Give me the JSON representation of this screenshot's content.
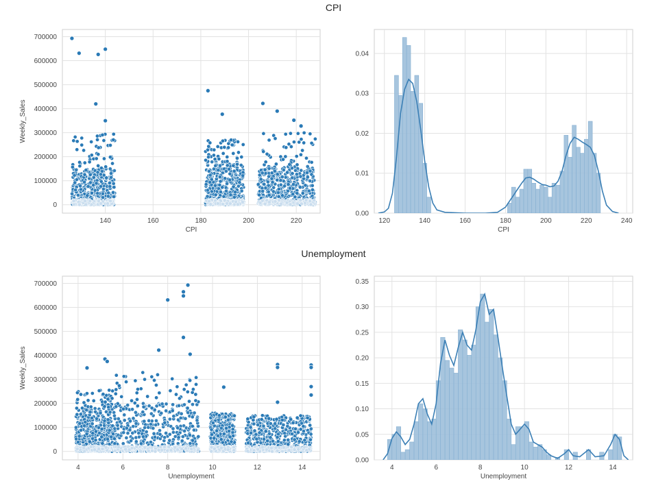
{
  "figure": {
    "row1_title": "CPI",
    "row2_title": "Unemployment"
  },
  "colors": {
    "point": "#2a7ab6",
    "bar_fill": "#9dbfda",
    "bar_edge": "#86b0d2",
    "kde": "#3b7fb5",
    "grid": "#e2e2e2",
    "axes": "#cfcfcf",
    "text": "#444444"
  },
  "chart_data": [
    {
      "type": "scatter",
      "title": "",
      "xlabel": "CPI",
      "ylabel": "Weekly_Sales",
      "xlim": [
        122,
        230
      ],
      "ylim": [
        -35000,
        730000
      ],
      "xticks": [
        140,
        160,
        180,
        200,
        220
      ],
      "yticks": [
        0,
        100000,
        200000,
        300000,
        400000,
        500000,
        600000,
        700000
      ],
      "xtick_labels": [
        "140",
        "160",
        "180",
        "200",
        "220"
      ],
      "ytick_labels": [
        "0",
        "100000",
        "200000",
        "300000",
        "400000",
        "500000",
        "600000",
        "700000"
      ],
      "grid": true,
      "clusters": [
        {
          "x_range": [
            126,
            144
          ],
          "y_dense_max": 150000,
          "y_sparse_max": 300000
        },
        {
          "x_range": [
            182,
            198
          ],
          "y_dense_max": 180000,
          "y_sparse_max": 270000
        },
        {
          "x_range": [
            204,
            228
          ],
          "y_dense_max": 160000,
          "y_sparse_max": 300000
        }
      ],
      "outliers": [
        [
          126,
          693000
        ],
        [
          129,
          631000
        ],
        [
          137,
          626000
        ],
        [
          140,
          648000
        ],
        [
          136,
          420000
        ],
        [
          140,
          350000
        ],
        [
          183,
          475000
        ],
        [
          189,
          377000
        ],
        [
          206,
          422000
        ],
        [
          212,
          390000
        ],
        [
          219,
          352000
        ],
        [
          222,
          328000
        ]
      ]
    },
    {
      "type": "bar",
      "title": "",
      "xlabel": "CPI",
      "ylabel": "",
      "xlim": [
        115,
        243
      ],
      "ylim": [
        0,
        0.046
      ],
      "xticks": [
        120,
        140,
        160,
        180,
        200,
        220,
        240
      ],
      "yticks": [
        0.0,
        0.01,
        0.02,
        0.03,
        0.04
      ],
      "xtick_labels": [
        "120",
        "140",
        "160",
        "180",
        "200",
        "220",
        "240"
      ],
      "ytick_labels": [
        "0.00",
        "0.01",
        "0.02",
        "0.03",
        "0.04"
      ],
      "grid": true,
      "bin_width": 2,
      "bins": [
        {
          "x": 126,
          "y": 0.0345
        },
        {
          "x": 128,
          "y": 0.0295
        },
        {
          "x": 130,
          "y": 0.044
        },
        {
          "x": 132,
          "y": 0.042
        },
        {
          "x": 134,
          "y": 0.0305
        },
        {
          "x": 136,
          "y": 0.0345
        },
        {
          "x": 138,
          "y": 0.0275
        },
        {
          "x": 140,
          "y": 0.0125
        },
        {
          "x": 142,
          "y": 0.004
        },
        {
          "x": 182,
          "y": 0.0025
        },
        {
          "x": 184,
          "y": 0.0065
        },
        {
          "x": 186,
          "y": 0.004
        },
        {
          "x": 188,
          "y": 0.006
        },
        {
          "x": 190,
          "y": 0.011
        },
        {
          "x": 192,
          "y": 0.011
        },
        {
          "x": 194,
          "y": 0.0075
        },
        {
          "x": 196,
          "y": 0.006
        },
        {
          "x": 198,
          "y": 0.007
        },
        {
          "x": 200,
          "y": 0.0065
        },
        {
          "x": 202,
          "y": 0.004
        },
        {
          "x": 204,
          "y": 0.0075
        },
        {
          "x": 206,
          "y": 0.007
        },
        {
          "x": 208,
          "y": 0.0105
        },
        {
          "x": 210,
          "y": 0.0195
        },
        {
          "x": 212,
          "y": 0.014
        },
        {
          "x": 214,
          "y": 0.022
        },
        {
          "x": 216,
          "y": 0.0165
        },
        {
          "x": 218,
          "y": 0.015
        },
        {
          "x": 220,
          "y": 0.0185
        },
        {
          "x": 222,
          "y": 0.023
        },
        {
          "x": 224,
          "y": 0.015
        },
        {
          "x": 226,
          "y": 0.01
        }
      ],
      "kde": [
        [
          117,
          0.0
        ],
        [
          120,
          0.0003
        ],
        [
          122,
          0.0012
        ],
        [
          124,
          0.005
        ],
        [
          126,
          0.014
        ],
        [
          128,
          0.025
        ],
        [
          130,
          0.031
        ],
        [
          132,
          0.0335
        ],
        [
          134,
          0.0325
        ],
        [
          136,
          0.028
        ],
        [
          138,
          0.021
        ],
        [
          140,
          0.013
        ],
        [
          142,
          0.0065
        ],
        [
          144,
          0.0025
        ],
        [
          146,
          0.0008
        ],
        [
          150,
          0.0002
        ],
        [
          160,
          0.0
        ],
        [
          170,
          0.0
        ],
        [
          176,
          0.0002
        ],
        [
          180,
          0.0015
        ],
        [
          182,
          0.003
        ],
        [
          184,
          0.0045
        ],
        [
          186,
          0.006
        ],
        [
          188,
          0.0075
        ],
        [
          190,
          0.0088
        ],
        [
          192,
          0.009
        ],
        [
          194,
          0.0085
        ],
        [
          196,
          0.0078
        ],
        [
          198,
          0.0072
        ],
        [
          200,
          0.007
        ],
        [
          202,
          0.0066
        ],
        [
          204,
          0.0068
        ],
        [
          206,
          0.008
        ],
        [
          208,
          0.0105
        ],
        [
          210,
          0.0145
        ],
        [
          212,
          0.0175
        ],
        [
          214,
          0.019
        ],
        [
          216,
          0.0185
        ],
        [
          218,
          0.0178
        ],
        [
          220,
          0.0172
        ],
        [
          222,
          0.0165
        ],
        [
          224,
          0.0145
        ],
        [
          226,
          0.0105
        ],
        [
          228,
          0.0055
        ],
        [
          230,
          0.002
        ],
        [
          233,
          0.0004
        ],
        [
          236,
          0.0
        ]
      ]
    },
    {
      "type": "scatter",
      "title": "",
      "xlabel": "Unemployment",
      "ylabel": "Weekly_Sales",
      "xlim": [
        3.3,
        14.8
      ],
      "ylim": [
        -35000,
        730000
      ],
      "xticks": [
        4,
        6,
        8,
        10,
        12,
        14
      ],
      "yticks": [
        0,
        100000,
        200000,
        300000,
        400000,
        500000,
        600000,
        700000
      ],
      "xtick_labels": [
        "4",
        "6",
        "8",
        "10",
        "12",
        "14"
      ],
      "ytick_labels": [
        "0",
        "100000",
        "200000",
        "300000",
        "400000",
        "500000",
        "600000",
        "700000"
      ],
      "grid": true,
      "clusters": [
        {
          "x_range": [
            3.9,
            5.6
          ],
          "y_dense_max": 180000,
          "y_sparse_max": 260000
        },
        {
          "x_range": [
            5.6,
            9.4
          ],
          "y_dense_max": 200000,
          "y_sparse_max": 330000
        },
        {
          "x_range": [
            9.9,
            11.0
          ],
          "y_dense_max": 140000,
          "y_sparse_max": 160000
        },
        {
          "x_range": [
            11.5,
            14.4
          ],
          "y_dense_max": 130000,
          "y_sparse_max": 150000
        }
      ],
      "outliers": [
        [
          8.9,
          693000
        ],
        [
          8.7,
          665000
        ],
        [
          8.7,
          648000
        ],
        [
          8.0,
          631000
        ],
        [
          8.7,
          475000
        ],
        [
          7.6,
          422000
        ],
        [
          9.0,
          405000
        ],
        [
          5.2,
          385000
        ],
        [
          5.3,
          375000
        ],
        [
          4.4,
          348000
        ],
        [
          10.5,
          268000
        ],
        [
          12.9,
          362000
        ],
        [
          12.9,
          350000
        ],
        [
          12.9,
          205000
        ],
        [
          14.4,
          360000
        ],
        [
          14.4,
          350000
        ],
        [
          14.4,
          270000
        ],
        [
          14.4,
          235000
        ]
      ]
    },
    {
      "type": "bar",
      "title": "",
      "xlabel": "Unemployment",
      "ylabel": "",
      "xlim": [
        3.2,
        14.9
      ],
      "ylim": [
        0,
        0.36
      ],
      "xticks": [
        4,
        6,
        8,
        10,
        12,
        14
      ],
      "yticks": [
        0.0,
        0.05,
        0.1,
        0.15,
        0.2,
        0.25,
        0.3,
        0.35
      ],
      "xtick_labels": [
        "4",
        "6",
        "8",
        "10",
        "12",
        "14"
      ],
      "ytick_labels": [
        "0.00",
        "0.05",
        "0.10",
        "0.15",
        "0.20",
        "0.25",
        "0.30",
        "0.35"
      ],
      "grid": true,
      "bin_width": 0.2,
      "bins": [
        {
          "x": 3.9,
          "y": 0.04
        },
        {
          "x": 4.1,
          "y": 0.05
        },
        {
          "x": 4.3,
          "y": 0.065
        },
        {
          "x": 4.5,
          "y": 0.015
        },
        {
          "x": 4.7,
          "y": 0.02
        },
        {
          "x": 4.9,
          "y": 0.035
        },
        {
          "x": 5.1,
          "y": 0.075
        },
        {
          "x": 5.3,
          "y": 0.11
        },
        {
          "x": 5.5,
          "y": 0.1
        },
        {
          "x": 5.7,
          "y": 0.075
        },
        {
          "x": 5.9,
          "y": 0.08
        },
        {
          "x": 6.1,
          "y": 0.155
        },
        {
          "x": 6.3,
          "y": 0.24
        },
        {
          "x": 6.5,
          "y": 0.195
        },
        {
          "x": 6.7,
          "y": 0.18
        },
        {
          "x": 6.9,
          "y": 0.17
        },
        {
          "x": 7.1,
          "y": 0.255
        },
        {
          "x": 7.3,
          "y": 0.235
        },
        {
          "x": 7.5,
          "y": 0.205
        },
        {
          "x": 7.7,
          "y": 0.225
        },
        {
          "x": 7.9,
          "y": 0.3
        },
        {
          "x": 8.1,
          "y": 0.325
        },
        {
          "x": 8.3,
          "y": 0.27
        },
        {
          "x": 8.5,
          "y": 0.295
        },
        {
          "x": 8.7,
          "y": 0.245
        },
        {
          "x": 8.9,
          "y": 0.2
        },
        {
          "x": 9.1,
          "y": 0.155
        },
        {
          "x": 9.3,
          "y": 0.08
        },
        {
          "x": 9.5,
          "y": 0.03
        },
        {
          "x": 9.7,
          "y": 0.065
        },
        {
          "x": 9.9,
          "y": 0.065
        },
        {
          "x": 10.1,
          "y": 0.075
        },
        {
          "x": 10.3,
          "y": 0.035
        },
        {
          "x": 10.5,
          "y": 0.025
        },
        {
          "x": 10.7,
          "y": 0.03
        },
        {
          "x": 10.9,
          "y": 0.02
        },
        {
          "x": 11.1,
          "y": 0.01
        },
        {
          "x": 11.5,
          "y": 0.005
        },
        {
          "x": 11.9,
          "y": 0.02
        },
        {
          "x": 12.3,
          "y": 0.015
        },
        {
          "x": 12.9,
          "y": 0.02
        },
        {
          "x": 13.5,
          "y": 0.015
        },
        {
          "x": 13.9,
          "y": 0.02
        },
        {
          "x": 14.1,
          "y": 0.05
        },
        {
          "x": 14.3,
          "y": 0.045
        }
      ],
      "kde": [
        [
          3.6,
          0.0
        ],
        [
          3.8,
          0.012
        ],
        [
          4.0,
          0.042
        ],
        [
          4.2,
          0.055
        ],
        [
          4.4,
          0.045
        ],
        [
          4.6,
          0.03
        ],
        [
          4.8,
          0.04
        ],
        [
          5.0,
          0.07
        ],
        [
          5.2,
          0.11
        ],
        [
          5.4,
          0.12
        ],
        [
          5.6,
          0.09
        ],
        [
          5.8,
          0.07
        ],
        [
          6.0,
          0.11
        ],
        [
          6.2,
          0.19
        ],
        [
          6.4,
          0.235
        ],
        [
          6.6,
          0.205
        ],
        [
          6.8,
          0.185
        ],
        [
          7.0,
          0.22
        ],
        [
          7.2,
          0.25
        ],
        [
          7.4,
          0.225
        ],
        [
          7.6,
          0.215
        ],
        [
          7.8,
          0.255
        ],
        [
          8.0,
          0.31
        ],
        [
          8.2,
          0.325
        ],
        [
          8.4,
          0.285
        ],
        [
          8.6,
          0.295
        ],
        [
          8.8,
          0.24
        ],
        [
          9.0,
          0.18
        ],
        [
          9.2,
          0.125
        ],
        [
          9.4,
          0.07
        ],
        [
          9.6,
          0.05
        ],
        [
          9.8,
          0.06
        ],
        [
          10.0,
          0.07
        ],
        [
          10.2,
          0.06
        ],
        [
          10.4,
          0.035
        ],
        [
          10.6,
          0.03
        ],
        [
          10.8,
          0.025
        ],
        [
          11.0,
          0.015
        ],
        [
          11.2,
          0.008
        ],
        [
          11.5,
          0.003
        ],
        [
          11.8,
          0.012
        ],
        [
          12.0,
          0.02
        ],
        [
          12.2,
          0.008
        ],
        [
          12.5,
          0.006
        ],
        [
          12.9,
          0.02
        ],
        [
          13.2,
          0.006
        ],
        [
          13.6,
          0.008
        ],
        [
          13.9,
          0.03
        ],
        [
          14.1,
          0.05
        ],
        [
          14.3,
          0.04
        ],
        [
          14.5,
          0.008
        ],
        [
          14.7,
          0.0
        ]
      ]
    }
  ]
}
